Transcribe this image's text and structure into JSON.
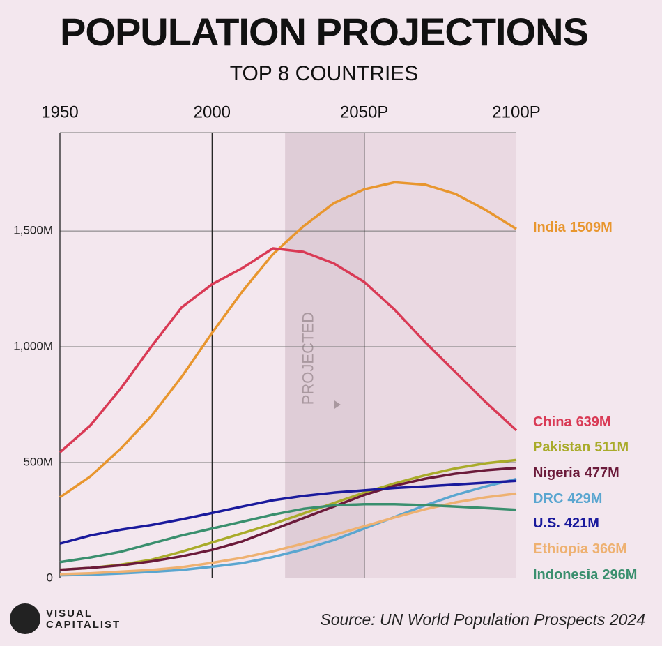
{
  "chart_data": {
    "type": "line",
    "title": "POPULATION PROJECTIONS",
    "subtitle": "TOP 8 COUNTRIES",
    "source": "Source: UN World Population Prospects 2024",
    "brand": [
      "VISUAL",
      "CAPITALIST"
    ],
    "projected_label": "PROJECTED",
    "projected_from": 2024,
    "x": [
      1950,
      1960,
      1970,
      1980,
      1990,
      2000,
      2010,
      2020,
      2030,
      2040,
      2050,
      2060,
      2070,
      2080,
      2090,
      2100
    ],
    "xlim": [
      1950,
      2100
    ],
    "xticks": [
      1950,
      2000,
      {
        "value": 2050,
        "label": "2050P"
      },
      {
        "value": 2100,
        "label": "2100P"
      }
    ],
    "ylim": [
      0,
      1925
    ],
    "yticks": [
      0,
      {
        "value": 500,
        "label": "500M"
      },
      {
        "value": 1000,
        "label": "1,000M"
      },
      {
        "value": 1500,
        "label": "1,500M"
      }
    ],
    "grid": true,
    "series": [
      {
        "name": "India",
        "color": "#e8962e",
        "values": [
          350,
          440,
          560,
          700,
          870,
          1060,
          1240,
          1400,
          1520,
          1620,
          1680,
          1710,
          1700,
          1660,
          1590,
          1509
        ],
        "value_labels": [
          null,
          null,
          null,
          null,
          null,
          null,
          null,
          null,
          null,
          null,
          null,
          null,
          null,
          null,
          null,
          "1509M"
        ]
      },
      {
        "name": "China",
        "color": "#d93a55",
        "values": [
          544,
          660,
          820,
          1000,
          1170,
          1270,
          1340,
          1425,
          1410,
          1360,
          1280,
          1160,
          1020,
          890,
          760,
          639
        ],
        "value_labels": [
          null,
          null,
          null,
          null,
          null,
          null,
          null,
          null,
          null,
          null,
          null,
          null,
          null,
          null,
          null,
          "639M"
        ]
      },
      {
        "name": "Pakistan",
        "color": "#a9ab2a",
        "values": [
          37,
          45,
          59,
          80,
          115,
          155,
          195,
          235,
          280,
          325,
          370,
          410,
          445,
          475,
          497,
          511
        ],
        "value_labels": [
          null,
          null,
          null,
          null,
          null,
          null,
          null,
          null,
          null,
          null,
          null,
          null,
          null,
          null,
          null,
          "511M"
        ]
      },
      {
        "name": "Nigeria",
        "color": "#6b1a3a",
        "values": [
          37,
          45,
          56,
          73,
          95,
          123,
          160,
          210,
          260,
          310,
          360,
          400,
          430,
          452,
          467,
          477
        ],
        "value_labels": [
          null,
          null,
          null,
          null,
          null,
          null,
          null,
          null,
          null,
          null,
          null,
          null,
          null,
          null,
          null,
          "477M"
        ]
      },
      {
        "name": "DRC",
        "color": "#5aa6d0",
        "values": [
          13,
          16,
          21,
          28,
          36,
          50,
          66,
          92,
          125,
          165,
          215,
          265,
          315,
          360,
          397,
          429
        ],
        "value_labels": [
          null,
          null,
          null,
          null,
          null,
          null,
          null,
          null,
          null,
          null,
          null,
          null,
          null,
          null,
          null,
          "429M"
        ]
      },
      {
        "name": "U.S.",
        "color": "#1a1a9c",
        "values": [
          150,
          185,
          210,
          230,
          255,
          282,
          310,
          337,
          356,
          370,
          380,
          390,
          397,
          405,
          413,
          421
        ],
        "value_labels": [
          null,
          null,
          null,
          null,
          null,
          null,
          null,
          null,
          null,
          null,
          null,
          null,
          null,
          null,
          null,
          "421M"
        ]
      },
      {
        "name": "Ethiopia",
        "color": "#eeb171",
        "values": [
          18,
          22,
          29,
          36,
          48,
          67,
          89,
          117,
          150,
          187,
          225,
          263,
          298,
          328,
          350,
          366
        ],
        "value_labels": [
          null,
          null,
          null,
          null,
          null,
          null,
          null,
          null,
          null,
          null,
          null,
          null,
          null,
          null,
          null,
          "366M"
        ]
      },
      {
        "name": "Indonesia",
        "color": "#3a8f6e",
        "values": [
          70,
          90,
          115,
          150,
          185,
          215,
          245,
          275,
          300,
          315,
          320,
          320,
          316,
          310,
          303,
          296
        ],
        "value_labels": [
          null,
          null,
          null,
          null,
          null,
          null,
          null,
          null,
          null,
          null,
          null,
          null,
          null,
          null,
          null,
          "296M"
        ]
      }
    ]
  }
}
